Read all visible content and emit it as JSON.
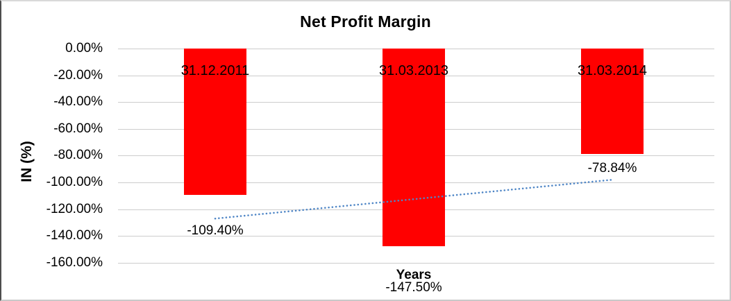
{
  "chart_data": {
    "type": "bar",
    "title": "Net Profit Margin",
    "xlabel": "Years",
    "ylabel": "IN (%)",
    "categories": [
      "31.12.2011",
      "31.03.2013",
      "31.03.2014"
    ],
    "values": [
      -109.4,
      -147.5,
      -78.84
    ],
    "data_labels": [
      "-109.40%",
      "-147.50%",
      "-78.84%"
    ],
    "yticks": [
      {
        "label": "0.00%",
        "value": 0
      },
      {
        "label": "-20.00%",
        "value": -20
      },
      {
        "label": "-40.00%",
        "value": -40
      },
      {
        "label": "-60.00%",
        "value": -60
      },
      {
        "label": "-80.00%",
        "value": -80
      },
      {
        "label": "-100.00%",
        "value": -100
      },
      {
        "label": "-120.00%",
        "value": -120
      },
      {
        "label": "-140.00%",
        "value": -140
      },
      {
        "label": "-160.00%",
        "value": -160
      }
    ],
    "ylim": [
      -160,
      0
    ],
    "grid": true,
    "legend": "none",
    "colors": {
      "bar": "#ff0000",
      "trendline": "#4f86c6",
      "gridline": "#cccccc",
      "text": "#000000"
    },
    "trendline": {
      "style": "dotted",
      "start_value": -127,
      "end_value": -98
    }
  }
}
